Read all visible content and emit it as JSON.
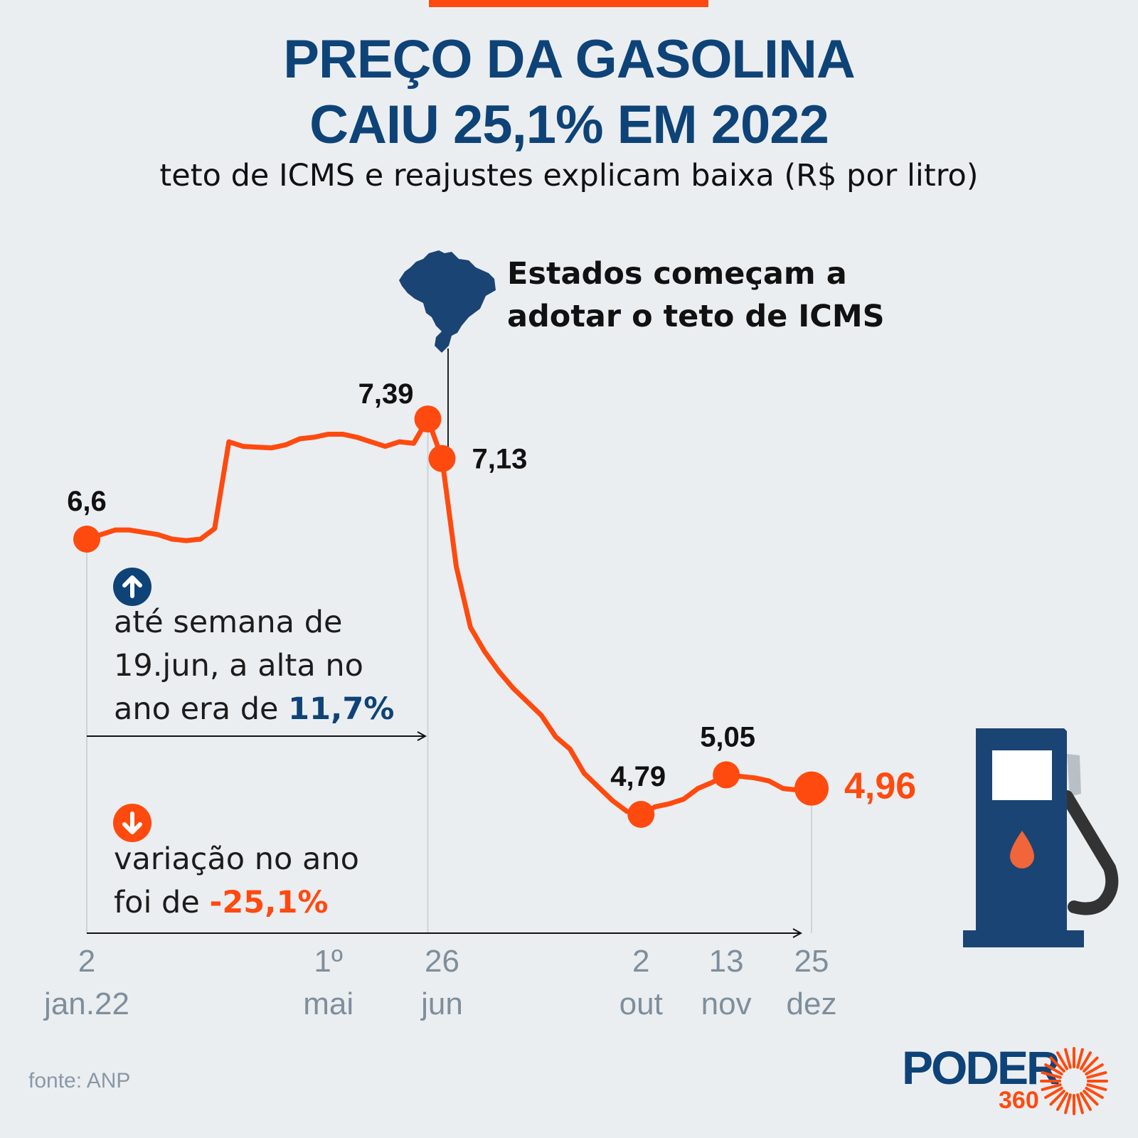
{
  "header": {
    "title_line1": "PREÇO DA GASOLINA",
    "title_line2": "CAIU 25,1% EM 2022",
    "subtitle": "teto de ICMS e reajustes explicam baixa (R$ por litro)"
  },
  "annotation": {
    "line1": "Estados começam a",
    "line2": "adotar o teto de ICMS"
  },
  "info_up": {
    "text1": "até semana de",
    "text2": "19.jun, a alta no",
    "text3": "ano era de ",
    "value": "11,7%"
  },
  "info_down": {
    "text1": "variação no ano",
    "text2": "foi de ",
    "value": "-25,1%"
  },
  "source": "fonte: ANP",
  "logo": {
    "name": "PODER",
    "sub": "360"
  },
  "colors": {
    "line": "#FF4A0F",
    "navy": "#0E4378",
    "axis_text": "#7F8E9B",
    "background": "#EBEEF1"
  },
  "chart_data": {
    "type": "line",
    "x_ticks": [
      {
        "week": 0,
        "line1": "2",
        "line2": "jan.22"
      },
      {
        "week": 17,
        "line1": "1º",
        "line2": "mai"
      },
      {
        "week": 25,
        "line1": "26",
        "line2": "jun"
      },
      {
        "week": 39,
        "line1": "2",
        "line2": "out"
      },
      {
        "week": 45,
        "line1": "13",
        "line2": "nov"
      },
      {
        "week": 51,
        "line1": "25",
        "line2": "dez"
      }
    ],
    "ylim": [
      4.5,
      7.5
    ],
    "series": [
      {
        "values": [
          [
            0,
            6.6
          ],
          [
            2,
            6.66
          ],
          [
            3,
            6.66
          ],
          [
            5,
            6.63
          ],
          [
            6,
            6.6
          ],
          [
            7,
            6.59
          ],
          [
            8,
            6.6
          ],
          [
            9,
            6.67
          ],
          [
            10,
            7.24
          ],
          [
            11,
            7.21
          ],
          [
            13,
            7.2
          ],
          [
            14,
            7.22
          ],
          [
            15,
            7.26
          ],
          [
            16,
            7.27
          ],
          [
            17,
            7.29
          ],
          [
            18,
            7.29
          ],
          [
            19,
            7.27
          ],
          [
            20,
            7.24
          ],
          [
            21,
            7.21
          ],
          [
            22,
            7.24
          ],
          [
            23,
            7.23
          ],
          [
            24,
            7.39
          ],
          [
            25,
            7.13
          ],
          [
            26,
            6.42
          ],
          [
            27,
            6.02
          ],
          [
            28,
            5.86
          ],
          [
            29,
            5.73
          ],
          [
            30,
            5.62
          ],
          [
            31,
            5.53
          ],
          [
            32,
            5.44
          ],
          [
            33,
            5.3
          ],
          [
            34,
            5.22
          ],
          [
            35,
            5.06
          ],
          [
            36,
            4.97
          ],
          [
            37,
            4.88
          ],
          [
            38,
            4.81
          ],
          [
            39,
            4.79
          ],
          [
            40,
            4.84
          ],
          [
            41,
            4.86
          ],
          [
            42,
            4.89
          ],
          [
            43,
            4.96
          ],
          [
            44,
            5.0
          ],
          [
            45,
            5.05
          ],
          [
            46,
            5.04
          ],
          [
            47,
            5.03
          ],
          [
            48,
            5.01
          ],
          [
            49,
            4.96
          ],
          [
            50,
            4.95
          ],
          [
            51,
            4.96
          ]
        ]
      }
    ],
    "point_labels": [
      {
        "week": 0,
        "value": 6.6,
        "text": "6,6"
      },
      {
        "week": 24,
        "value": 7.39,
        "text": "7,39"
      },
      {
        "week": 25,
        "value": 7.13,
        "text": "7,13"
      },
      {
        "week": 39,
        "value": 4.79,
        "text": "4,79"
      },
      {
        "week": 45,
        "value": 5.05,
        "text": "5,05"
      },
      {
        "week": 51,
        "value": 4.96,
        "text": "4,96"
      }
    ]
  }
}
